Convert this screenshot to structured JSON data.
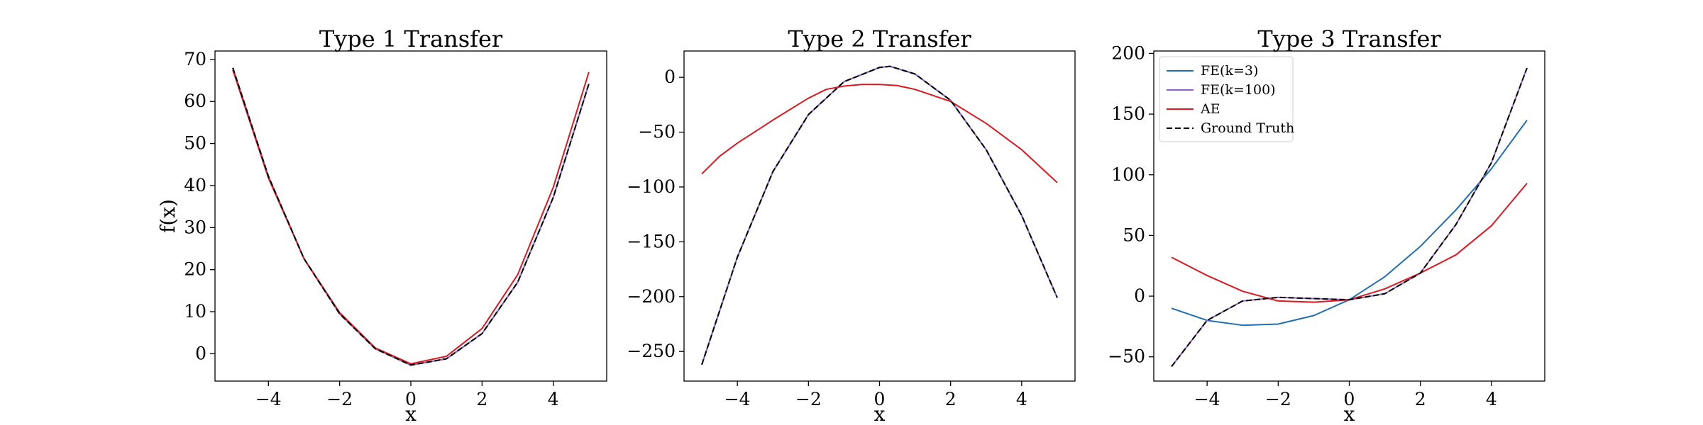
{
  "colors": {
    "fe_k3": "#1f6fb4",
    "fe_k100": "#8e63c9",
    "ae": "#e0171f",
    "truth": "#000000"
  },
  "chart_data": [
    {
      "type": "line",
      "title": "Type 1 Transfer",
      "xlabel": "x",
      "ylabel": "f(x)",
      "xlim": [
        -5.5,
        5.5
      ],
      "ylim": [
        -6.5,
        72
      ],
      "xticks": [
        -4,
        -2,
        0,
        2,
        4
      ],
      "xtick_labels": [
        "−4",
        "−2",
        "0",
        "2",
        "4"
      ],
      "yticks": [
        0,
        10,
        20,
        30,
        40,
        50,
        60,
        70
      ],
      "ytick_labels": [
        "0",
        "10",
        "20",
        "30",
        "40",
        "50",
        "60",
        "70"
      ],
      "grid": false,
      "series": [
        {
          "key": "fe_k3",
          "style": "solid",
          "x": [
            -5,
            -4,
            -3,
            -2,
            -1,
            0,
            1,
            2,
            3,
            4,
            5
          ],
          "y": [
            68,
            42.2,
            22.6,
            9.5,
            1.2,
            -2.7,
            -1.2,
            4.8,
            17,
            37.2,
            64.2
          ]
        },
        {
          "key": "fe_k100",
          "style": "solid",
          "x": [
            -5,
            -4,
            -3,
            -2,
            -1,
            0,
            1,
            2,
            3,
            4,
            5
          ],
          "y": [
            68,
            42.2,
            22.6,
            9.5,
            1.2,
            -2.7,
            -1.2,
            4.8,
            17,
            37.2,
            64.2
          ]
        },
        {
          "key": "ae",
          "style": "solid",
          "x": [
            -5,
            -4,
            -3,
            -2,
            -1,
            0,
            1,
            2,
            3,
            4,
            5
          ],
          "y": [
            67.5,
            41.8,
            22.6,
            9.8,
            1.4,
            -2.4,
            -0.6,
            6,
            18.8,
            39.6,
            67
          ]
        },
        {
          "key": "truth",
          "style": "dashed",
          "x": [
            -5,
            -4,
            -3,
            -2,
            -1,
            0,
            1,
            2,
            3,
            4,
            5
          ],
          "y": [
            68,
            42.2,
            22.6,
            9.5,
            1.2,
            -2.7,
            -1.2,
            4.8,
            17,
            37.2,
            64.2
          ]
        }
      ]
    },
    {
      "type": "line",
      "title": "Type 2 Transfer",
      "xlabel": "x",
      "ylabel": "",
      "xlim": [
        -5.5,
        5.5
      ],
      "ylim": [
        -277,
        24
      ],
      "xticks": [
        -4,
        -2,
        0,
        2,
        4
      ],
      "xtick_labels": [
        "−4",
        "−2",
        "0",
        "2",
        "4"
      ],
      "yticks": [
        0,
        -50,
        -100,
        -150,
        -200,
        -250
      ],
      "ytick_labels": [
        "0",
        "−50",
        "−100",
        "−150",
        "−200",
        "−250"
      ],
      "grid": false,
      "series": [
        {
          "key": "fe_k3",
          "style": "solid",
          "x": [
            -5,
            -4,
            -3,
            -2,
            -1,
            0,
            0.3,
            1,
            2,
            3,
            4,
            5
          ],
          "y": [
            -262,
            -164,
            -86,
            -34,
            -4,
            9,
            10,
            3,
            -21,
            -66,
            -126,
            -201
          ]
        },
        {
          "key": "fe_k100",
          "style": "solid",
          "x": [
            -5,
            -4,
            -3,
            -2,
            -1,
            0,
            0.3,
            1,
            2,
            3,
            4,
            5
          ],
          "y": [
            -262,
            -164,
            -86,
            -34,
            -4,
            9,
            10,
            3,
            -21,
            -66,
            -126,
            -201
          ]
        },
        {
          "key": "ae",
          "style": "solid",
          "x": [
            -5,
            -4.5,
            -4,
            -3,
            -2,
            -1.5,
            -1,
            -0.5,
            0,
            0.5,
            1,
            2,
            3,
            4,
            5
          ],
          "y": [
            -88,
            -72,
            -60,
            -39,
            -19,
            -11,
            -8,
            -6.5,
            -6.5,
            -7.5,
            -11,
            -22,
            -42,
            -66,
            -96
          ]
        },
        {
          "key": "truth",
          "style": "dashed",
          "x": [
            -5,
            -4,
            -3,
            -2,
            -1,
            0,
            0.3,
            1,
            2,
            3,
            4,
            5
          ],
          "y": [
            -262,
            -164,
            -86,
            -34,
            -4,
            9,
            10,
            3,
            -21,
            -66,
            -126,
            -201
          ]
        }
      ]
    },
    {
      "type": "line",
      "title": "Type 3 Transfer",
      "xlabel": "x",
      "ylabel": "",
      "xlim": [
        -5.5,
        5.5
      ],
      "ylim": [
        -70,
        202
      ],
      "xticks": [
        -4,
        -2,
        0,
        2,
        4
      ],
      "xtick_labels": [
        "−4",
        "−2",
        "0",
        "2",
        "4"
      ],
      "yticks": [
        -50,
        0,
        50,
        100,
        150,
        200
      ],
      "ytick_labels": [
        "−50",
        "0",
        "50",
        "100",
        "150",
        "200"
      ],
      "grid": false,
      "legend": {
        "placement": "upper left",
        "entries": [
          {
            "key": "fe_k3",
            "label": "FE(k=3)"
          },
          {
            "key": "fe_k100",
            "label": "FE(k=100)"
          },
          {
            "key": "ae",
            "label": "AE"
          },
          {
            "key": "truth",
            "label": "Ground Truth"
          }
        ]
      },
      "series": [
        {
          "key": "fe_k3",
          "style": "solid",
          "x": [
            -5,
            -4,
            -3,
            -2,
            -1,
            0,
            1,
            2,
            3,
            4,
            5
          ],
          "y": [
            -10,
            -20,
            -24,
            -23,
            -16,
            -3,
            16,
            41,
            71,
            105,
            145
          ]
        },
        {
          "key": "fe_k100",
          "style": "solid",
          "x": [
            -5,
            -4,
            -3,
            -2,
            -1,
            0,
            1,
            2,
            3,
            4,
            5
          ],
          "y": [
            -58,
            -20,
            -4,
            -1,
            -2,
            -3,
            2,
            19,
            59,
            110,
            188
          ]
        },
        {
          "key": "ae",
          "style": "solid",
          "x": [
            -5,
            -4,
            -3,
            -2,
            -1,
            0,
            1,
            2,
            3,
            4,
            5
          ],
          "y": [
            32,
            17,
            4,
            -4,
            -5,
            -3,
            6,
            19,
            34,
            58,
            93
          ]
        },
        {
          "key": "truth",
          "style": "dashed",
          "x": [
            -5,
            -4,
            -3,
            -2,
            -1,
            0,
            1,
            2,
            3,
            4,
            5
          ],
          "y": [
            -58,
            -20,
            -4,
            -1,
            -2,
            -3,
            2,
            19,
            59,
            110,
            188
          ]
        }
      ]
    }
  ]
}
